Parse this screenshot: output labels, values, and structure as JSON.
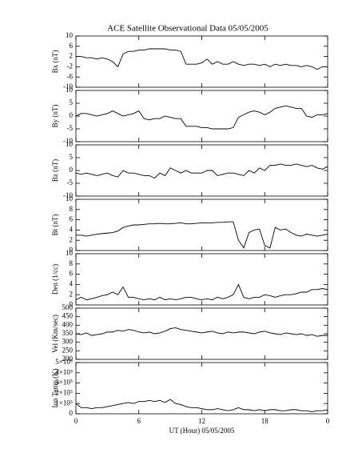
{
  "chart_data": [
    {
      "type": "line",
      "title": "ACE Satellite Observational Data   05/05/2005",
      "ylabel": "Bx (nT)",
      "x": [
        0,
        0.5,
        1,
        1.5,
        2,
        2.5,
        3,
        3.5,
        4,
        4.5,
        5,
        5.5,
        6,
        6.5,
        7,
        7.5,
        8,
        8.5,
        9,
        9.5,
        10,
        10.5,
        11,
        11.5,
        12,
        12.5,
        13,
        13.5,
        14,
        14.5,
        15,
        15.5,
        16,
        16.5,
        17,
        17.5,
        18,
        18.5,
        19,
        19.5,
        20,
        20.5,
        21,
        21.5,
        22,
        22.5,
        23,
        23.5,
        24
      ],
      "values": [
        2,
        2,
        1.5,
        1.5,
        1,
        1.5,
        1,
        0,
        -2,
        3,
        4,
        4,
        4.5,
        4.5,
        5,
        5,
        5,
        5,
        4.5,
        4.5,
        4,
        -1,
        -1,
        -1,
        -0.5,
        1,
        -1,
        0,
        -1,
        -1,
        0,
        -1,
        -1.5,
        -1,
        -1,
        -1.5,
        -1,
        -2,
        -1,
        -1.5,
        -1,
        -1.5,
        -1.5,
        -2,
        -1.5,
        -2,
        -3,
        -2,
        -2
      ],
      "xlim": [
        0,
        24
      ],
      "ylim": [
        -10,
        10
      ],
      "yticks": [
        -10,
        -6,
        -2,
        2,
        6,
        10
      ],
      "color": "#000000"
    },
    {
      "type": "line",
      "ylabel": "By (nT)",
      "x": [
        0,
        0.5,
        1,
        1.5,
        2,
        2.5,
        3,
        3.5,
        4,
        4.5,
        5,
        5.5,
        6,
        6.5,
        7,
        7.5,
        8,
        8.5,
        9,
        9.5,
        10,
        10.5,
        11,
        11.5,
        12,
        12.5,
        13,
        13.5,
        14,
        14.5,
        15,
        15.5,
        16,
        16.5,
        17,
        17.5,
        18,
        18.5,
        19,
        19.5,
        20,
        20.5,
        21,
        21.5,
        22,
        22.5,
        23,
        23.5,
        24
      ],
      "values": [
        0,
        1,
        1,
        0.5,
        0,
        0.5,
        1,
        2,
        1,
        0,
        0.5,
        1,
        2,
        -1,
        -1.5,
        -1,
        -1,
        0,
        -0.5,
        -1,
        -1,
        -4,
        -4,
        -4,
        -4.5,
        -4.5,
        -5,
        -5,
        -5,
        -5,
        -4.5,
        -0.5,
        0.5,
        1.5,
        2,
        1.5,
        0.5,
        1.5,
        3,
        3.5,
        4,
        3.5,
        3,
        3,
        0,
        -0.5,
        0.5,
        0.5,
        1
      ],
      "xlim": [
        0,
        24
      ],
      "ylim": [
        -10,
        10
      ],
      "yticks": [
        -10,
        -5,
        0,
        5,
        10
      ],
      "color": "#000000"
    },
    {
      "type": "line",
      "ylabel": "Bz (nT)",
      "x": [
        0,
        0.5,
        1,
        1.5,
        2,
        2.5,
        3,
        3.5,
        4,
        4.5,
        5,
        5.5,
        6,
        6.5,
        7,
        7.5,
        8,
        8.5,
        9,
        9.5,
        10,
        10.5,
        11,
        11.5,
        12,
        12.5,
        13,
        13.5,
        14,
        14.5,
        15,
        15.5,
        16,
        16.5,
        17,
        17.5,
        18,
        18.5,
        19,
        19.5,
        20,
        20.5,
        21,
        21.5,
        22,
        22.5,
        23,
        23.5,
        24
      ],
      "values": [
        -1,
        -1.5,
        -1,
        -1.5,
        -2,
        -1.5,
        -1,
        -2,
        -2.5,
        0,
        -1,
        -1,
        -1.5,
        -2,
        -2,
        -3,
        -1,
        -2,
        1,
        0,
        -1,
        0,
        -1,
        -1,
        -1,
        0,
        0,
        -2,
        -1.5,
        -1,
        -1,
        -1.5,
        -2,
        0,
        -1,
        1,
        0,
        2,
        2,
        2.5,
        2,
        2,
        2.5,
        2,
        1.5,
        2,
        1,
        0.5,
        1.5
      ],
      "xlim": [
        0,
        24
      ],
      "ylim": [
        -10,
        10
      ],
      "yticks": [
        -10,
        -5,
        0,
        5,
        10
      ],
      "color": "#000000"
    },
    {
      "type": "line",
      "ylabel": "Bt (nT)",
      "x": [
        0,
        0.5,
        1,
        1.5,
        2,
        2.5,
        3,
        3.5,
        4,
        4.5,
        5,
        5.5,
        6,
        6.5,
        7,
        7.5,
        8,
        8.5,
        9,
        9.5,
        10,
        10.5,
        11,
        11.5,
        12,
        12.5,
        13,
        13.5,
        14,
        14.5,
        15,
        15.5,
        16,
        16.5,
        17,
        17.5,
        18,
        18.5,
        19,
        19.5,
        20,
        20.5,
        21,
        21.5,
        22,
        22.5,
        23,
        23.5,
        24
      ],
      "values": [
        3,
        3,
        2.8,
        3,
        3.2,
        3.3,
        3.4,
        3.5,
        3.8,
        4.5,
        4.8,
        5,
        5,
        5.1,
        5.2,
        5.2,
        5.3,
        5.2,
        5.2,
        5.3,
        5.4,
        5.2,
        5.2,
        5.3,
        5.4,
        5.4,
        5.4,
        5.5,
        5.5,
        5.6,
        5.6,
        2,
        0.5,
        3.5,
        4,
        4.2,
        1,
        0.5,
        4.5,
        4,
        4.2,
        3.5,
        3,
        2.8,
        3.2,
        3,
        2.8,
        3,
        3.2
      ],
      "xlim": [
        0,
        24
      ],
      "ylim": [
        0,
        10
      ],
      "yticks": [
        0,
        2,
        4,
        6,
        8,
        10
      ],
      "color": "#000000"
    },
    {
      "type": "line",
      "ylabel": "Den (1/cc)",
      "x": [
        0,
        0.5,
        1,
        1.5,
        2,
        2.5,
        3,
        3.5,
        4,
        4.5,
        5,
        5.5,
        6,
        6.5,
        7,
        7.5,
        8,
        8.5,
        9,
        9.5,
        10,
        10.5,
        11,
        11.5,
        12,
        12.5,
        13,
        13.5,
        14,
        14.5,
        15,
        15.5,
        16,
        16.5,
        17,
        17.5,
        18,
        18.5,
        19,
        19.5,
        20,
        20.5,
        21,
        21.5,
        22,
        22.5,
        23,
        23.5,
        24
      ],
      "values": [
        1,
        1.5,
        1,
        1.2,
        1.5,
        1.8,
        2,
        2.5,
        2,
        3.5,
        1.5,
        1.5,
        1.2,
        1,
        1.2,
        1,
        1.5,
        1,
        1.2,
        1,
        1.2,
        1.5,
        1.5,
        1.2,
        1,
        1.2,
        1,
        1.5,
        1.2,
        1.5,
        2,
        4,
        1.5,
        1.2,
        1.5,
        1.5,
        2,
        1.8,
        1.5,
        1.8,
        2,
        2,
        2.2,
        2.5,
        2.5,
        3,
        3,
        3.2,
        3
      ],
      "xlim": [
        0,
        24
      ],
      "ylim": [
        0,
        10
      ],
      "yticks": [
        0,
        2,
        4,
        6,
        8,
        10
      ],
      "color": "#000000"
    },
    {
      "type": "line",
      "ylabel": "Vel (Km/sec)",
      "x": [
        0,
        0.5,
        1,
        1.5,
        2,
        2.5,
        3,
        3.5,
        4,
        4.5,
        5,
        5.5,
        6,
        6.5,
        7,
        7.5,
        8,
        8.5,
        9,
        9.5,
        10,
        10.5,
        11,
        11.5,
        12,
        12.5,
        13,
        13.5,
        14,
        14.5,
        15,
        15.5,
        16,
        16.5,
        17,
        17.5,
        18,
        18.5,
        19,
        19.5,
        20,
        20.5,
        21,
        21.5,
        22,
        22.5,
        23,
        23.5,
        24
      ],
      "values": [
        350,
        345,
        355,
        340,
        345,
        350,
        360,
        360,
        370,
        365,
        375,
        370,
        360,
        355,
        360,
        350,
        355,
        365,
        380,
        385,
        375,
        370,
        365,
        360,
        355,
        360,
        365,
        355,
        350,
        360,
        355,
        360,
        360,
        355,
        350,
        360,
        365,
        355,
        350,
        345,
        355,
        350,
        345,
        350,
        340,
        345,
        335,
        340,
        340
      ],
      "xlim": [
        0,
        24
      ],
      "ylim": [
        200,
        500
      ],
      "yticks": [
        200,
        250,
        300,
        350,
        400,
        450,
        500
      ],
      "color": "#000000"
    },
    {
      "type": "line",
      "ylabel": "Ion Temp (K)",
      "xlabel": "UT (Hour)   05/05/2005",
      "x": [
        0,
        0.5,
        1,
        1.5,
        2,
        2.5,
        3,
        3.5,
        4,
        4.5,
        5,
        5.5,
        6,
        6.5,
        7,
        7.5,
        8,
        8.5,
        9,
        9.5,
        10,
        10.5,
        11,
        11.5,
        12,
        12.5,
        13,
        13.5,
        14,
        14.5,
        15,
        15.5,
        16,
        16.5,
        17,
        17.5,
        18,
        18.5,
        19,
        19.5,
        20,
        20.5,
        21,
        21.5,
        22,
        22.5,
        23,
        23.5,
        24
      ],
      "values": [
        100000,
        60000,
        60000,
        50000,
        60000,
        60000,
        70000,
        80000,
        90000,
        100000,
        110000,
        100000,
        120000,
        120000,
        130000,
        120000,
        130000,
        110000,
        140000,
        100000,
        90000,
        70000,
        60000,
        60000,
        50000,
        40000,
        40000,
        50000,
        40000,
        30000,
        40000,
        60000,
        40000,
        40000,
        30000,
        40000,
        30000,
        40000,
        40000,
        30000,
        30000,
        40000,
        40000,
        30000,
        30000,
        20000,
        30000,
        30000,
        40000
      ],
      "xlim": [
        0,
        24
      ],
      "xticks": [
        0,
        6,
        12,
        18,
        {
          "value": 24,
          "label": "0"
        }
      ],
      "ylim": [
        0,
        500000
      ],
      "yticks": [
        0,
        {
          "value": 100000,
          "label": "1×10⁵"
        },
        {
          "value": 200000,
          "label": "2×10⁵"
        },
        {
          "value": 300000,
          "label": "3×10⁵"
        },
        {
          "value": 400000,
          "label": "4×10⁵"
        },
        {
          "value": 500000,
          "label": "5×10⁵"
        }
      ],
      "color": "#000000"
    }
  ]
}
